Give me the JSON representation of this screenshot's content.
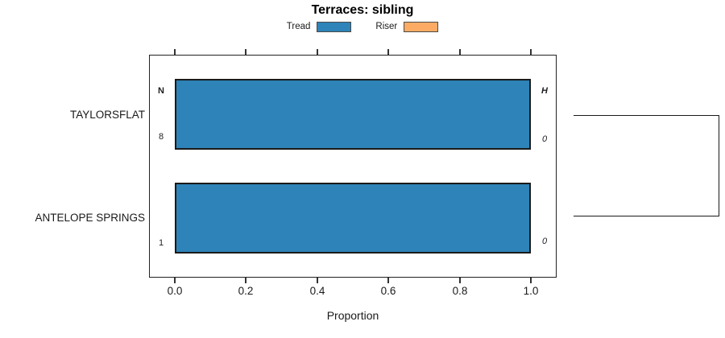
{
  "chart_data": {
    "type": "bar",
    "orientation": "horizontal",
    "title": "Terraces: sibling",
    "xlabel": "Proportion",
    "xlim": [
      0,
      1
    ],
    "xticks": [
      0.0,
      0.2,
      0.4,
      0.6,
      0.8,
      1.0
    ],
    "xtick_labels": [
      "0.0",
      "0.2",
      "0.4",
      "0.6",
      "0.8",
      "1.0"
    ],
    "categories": [
      "TAYLORSFLAT",
      "ANTELOPE SPRINGS"
    ],
    "series": [
      {
        "name": "Tread",
        "color": "#2e83b8",
        "values": [
          1.0,
          1.0
        ]
      },
      {
        "name": "Riser",
        "color": "#fcab64",
        "values": [
          0.0,
          0.0
        ]
      }
    ],
    "annotations": {
      "left_header": "N",
      "right_header": "H",
      "left_values": [
        "8",
        "1"
      ],
      "right_values": [
        "0",
        "0"
      ]
    },
    "legend_position": "top",
    "grid": false,
    "bar_border_color": "#1a1a1a",
    "right_link": "bracket joining TAYLORSFLAT and ANTELOPE SPRINGS rows"
  }
}
